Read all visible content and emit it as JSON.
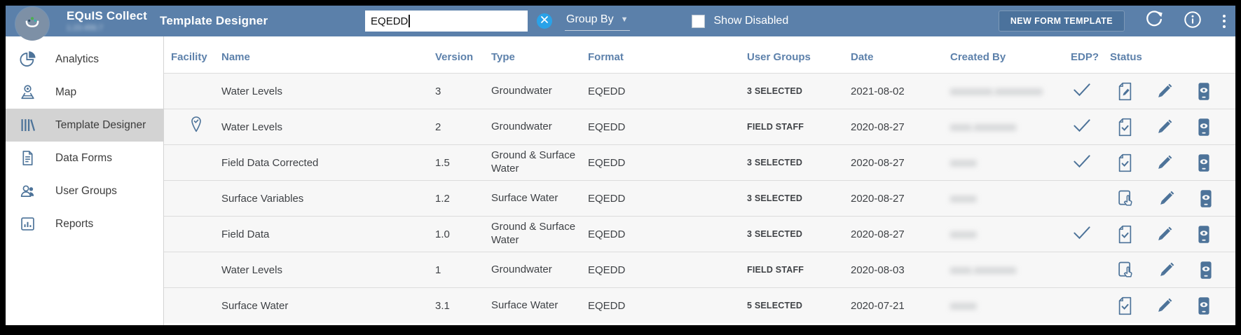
{
  "colors": {
    "header_bg": "#5b80aa",
    "table_header_text": "#5d81ab",
    "icon_accent": "#4d7399",
    "clear_search_blue": "#2aa2e8",
    "selected_sidebar_bg": "#d3d3d3",
    "row_bg": "#f7f7f7"
  },
  "header": {
    "app_title": "EQuIS Collect",
    "app_version_redacted": "1.23.456.7",
    "page_title": "Template Designer",
    "search_value": "EQEDD",
    "group_by_label": "Group By",
    "show_disabled_label": "Show Disabled",
    "show_disabled_checked": false,
    "new_form_template_label": "NEW FORM TEMPLATE"
  },
  "sidebar": {
    "items": [
      {
        "label": "Analytics",
        "icon": "pie-chart-icon",
        "selected": false
      },
      {
        "label": "Map",
        "icon": "map-pin-icon",
        "selected": false
      },
      {
        "label": "Template Designer",
        "icon": "library-icon",
        "selected": true
      },
      {
        "label": "Data Forms",
        "icon": "document-icon",
        "selected": false
      },
      {
        "label": "User Groups",
        "icon": "people-icon",
        "selected": false
      },
      {
        "label": "Reports",
        "icon": "report-chart-icon",
        "selected": false
      }
    ]
  },
  "table": {
    "columns": [
      "Facility",
      "Name",
      "Version",
      "Type",
      "Format",
      "User Groups",
      "Date",
      "Created By",
      "EDP?",
      "Status"
    ],
    "rows": [
      {
        "facility_icon": false,
        "name": "Water Levels",
        "version": "3",
        "type": "Groundwater",
        "format": "EQEDD",
        "user_groups": "3 SELECTED",
        "date": "2021-08-02",
        "created_by_redacted": "xxxxxxxx.xxxxxxxxx",
        "edp": true,
        "status_icon": "document-edit-icon"
      },
      {
        "facility_icon": true,
        "name": "Water Levels",
        "version": "2",
        "type": "Groundwater",
        "format": "EQEDD",
        "user_groups": "FIELD STAFF",
        "date": "2020-08-27",
        "created_by_redacted": "xxxx.xxxxxxxx",
        "edp": true,
        "status_icon": "document-check-icon"
      },
      {
        "facility_icon": false,
        "name": "Field Data Corrected",
        "version": "1.5",
        "type": "Ground & Surface Water",
        "format": "EQEDD",
        "user_groups": "3 SELECTED",
        "date": "2020-08-27",
        "created_by_redacted": "xxxxx",
        "edp": true,
        "status_icon": "document-check-icon"
      },
      {
        "facility_icon": false,
        "name": "Surface Variables",
        "version": "1.2",
        "type": "Surface Water",
        "format": "EQEDD",
        "user_groups": "3 SELECTED",
        "date": "2020-08-27",
        "created_by_redacted": "xxxxx",
        "edp": false,
        "status_icon": "tablet-touch-icon"
      },
      {
        "facility_icon": false,
        "name": "Field Data",
        "version": "1.0",
        "type": "Ground & Surface Water",
        "format": "EQEDD",
        "user_groups": "3 SELECTED",
        "date": "2020-08-27",
        "created_by_redacted": "xxxxx",
        "edp": true,
        "status_icon": "document-check-icon"
      },
      {
        "facility_icon": false,
        "name": "Water Levels",
        "version": "1",
        "type": "Groundwater",
        "format": "EQEDD",
        "user_groups": "FIELD STAFF",
        "date": "2020-08-03",
        "created_by_redacted": "xxxx.xxxxxxxx",
        "edp": false,
        "status_icon": "tablet-touch-icon"
      },
      {
        "facility_icon": false,
        "name": "Surface Water",
        "version": "3.1",
        "type": "Surface Water",
        "format": "EQEDD",
        "user_groups": "5 SELECTED",
        "date": "2020-07-21",
        "created_by_redacted": "xxxxx",
        "edp": false,
        "status_icon": "document-check-icon"
      }
    ]
  }
}
